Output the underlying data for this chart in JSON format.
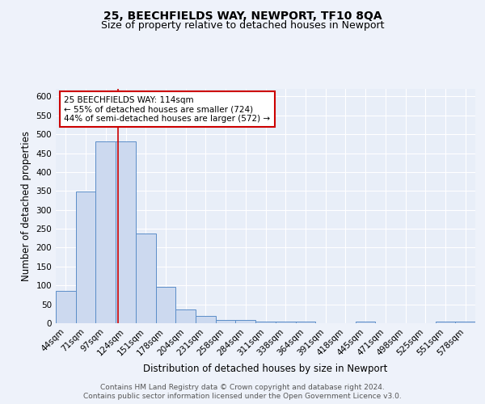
{
  "title": "25, BEECHFIELDS WAY, NEWPORT, TF10 8QA",
  "subtitle": "Size of property relative to detached houses in Newport",
  "xlabel": "Distribution of detached houses by size in Newport",
  "ylabel": "Number of detached properties",
  "categories": [
    "44sqm",
    "71sqm",
    "97sqm",
    "124sqm",
    "151sqm",
    "178sqm",
    "204sqm",
    "231sqm",
    "258sqm",
    "284sqm",
    "311sqm",
    "338sqm",
    "364sqm",
    "391sqm",
    "418sqm",
    "445sqm",
    "471sqm",
    "498sqm",
    "525sqm",
    "551sqm",
    "578sqm"
  ],
  "values": [
    85,
    348,
    480,
    480,
    237,
    97,
    37,
    20,
    8,
    8,
    5,
    5,
    5,
    0,
    0,
    5,
    0,
    0,
    0,
    5,
    5
  ],
  "bar_color": "#ccd9ef",
  "bar_edge_color": "#5b8dc8",
  "red_line_x": 2.63,
  "annotation_text": "25 BEECHFIELDS WAY: 114sqm\n← 55% of detached houses are smaller (724)\n44% of semi-detached houses are larger (572) →",
  "annotation_box_color": "white",
  "annotation_box_edge_color": "#cc0000",
  "red_line_color": "#cc0000",
  "ylim": [
    0,
    620
  ],
  "yticks": [
    0,
    50,
    100,
    150,
    200,
    250,
    300,
    350,
    400,
    450,
    500,
    550,
    600
  ],
  "footer_line1": "Contains HM Land Registry data © Crown copyright and database right 2024.",
  "footer_line2": "Contains public sector information licensed under the Open Government Licence v3.0.",
  "title_fontsize": 10,
  "subtitle_fontsize": 9,
  "axis_label_fontsize": 8.5,
  "tick_fontsize": 7.5,
  "footer_fontsize": 6.5,
  "annotation_fontsize": 7.5,
  "background_color": "#eef2fa",
  "plot_bg_color": "#e8eef8"
}
